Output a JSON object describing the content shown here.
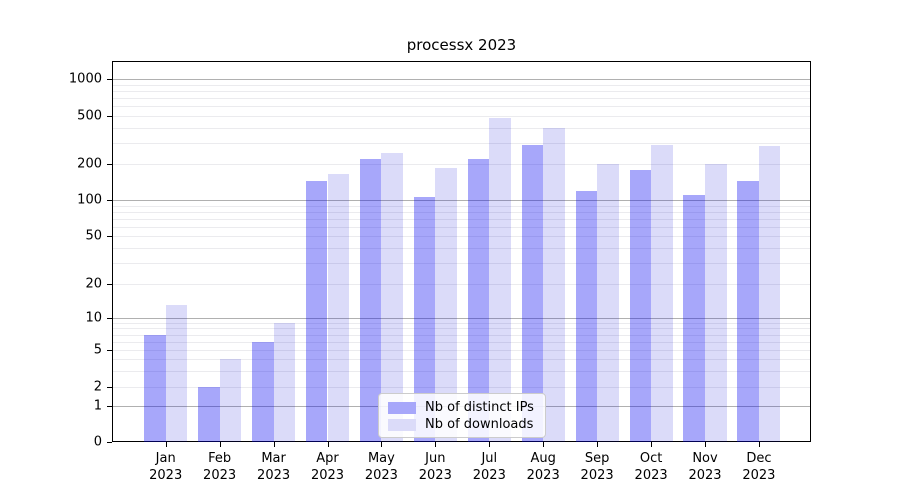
{
  "title": "processx 2023",
  "legend": {
    "items": [
      {
        "label": "Nb of distinct IPs",
        "color": "#a7a7fa"
      },
      {
        "label": "Nb of downloads",
        "color": "#dbdbf9"
      }
    ]
  },
  "chart_data": {
    "type": "bar",
    "title": "processx 2023",
    "categories": [
      "Jan 2023",
      "Feb 2023",
      "Mar 2023",
      "Apr 2023",
      "May 2023",
      "Jun 2023",
      "Jul 2023",
      "Aug 2023",
      "Sep 2023",
      "Oct 2023",
      "Nov 2023",
      "Dec 2023"
    ],
    "series": [
      {
        "name": "Nb of distinct IPs",
        "color": "#a7a7fa",
        "values": [
          7,
          2,
          6,
          145,
          220,
          107,
          220,
          290,
          120,
          178,
          110,
          143
        ]
      },
      {
        "name": "Nb of downloads",
        "color": "#dbdbf9",
        "values": [
          13,
          4,
          9,
          165,
          245,
          185,
          480,
          400,
          200,
          285,
          200,
          280
        ]
      }
    ],
    "xlabel": "",
    "ylabel": "",
    "yscale": "log-with-zero",
    "y_ticks": [
      0,
      1,
      2,
      5,
      10,
      20,
      50,
      100,
      200,
      500,
      1000
    ],
    "ylim": [
      0,
      1400
    ],
    "grid": "horizontal-major-and-minor",
    "legend_position": "lower-center"
  }
}
